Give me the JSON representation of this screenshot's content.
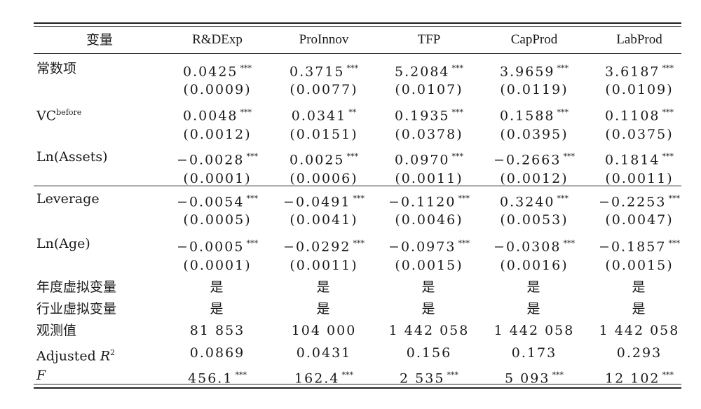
{
  "table": {
    "headers": [
      "变量",
      "R&DExp",
      "ProInnov",
      "TFP",
      "CapProd",
      "LabProd"
    ],
    "rows": [
      {
        "label": "常数项",
        "coef": [
          "0.0425",
          "0.3715",
          "5.2084",
          "3.9659",
          "3.6187"
        ],
        "stars": [
          "***",
          "***",
          "***",
          "***",
          "***"
        ],
        "se": [
          "(0.0009)",
          "(0.0077)",
          "(0.0107)",
          "(0.0119)",
          "(0.0109)"
        ]
      },
      {
        "label": "VC",
        "label_sup": "before",
        "coef": [
          "0.0048",
          "0.0341",
          "0.1935",
          "0.1588",
          "0.1108"
        ],
        "stars": [
          "***",
          "**",
          "***",
          "***",
          "***"
        ],
        "se": [
          "(0.0012)",
          "(0.0151)",
          "(0.0378)",
          "(0.0395)",
          "(0.0375)"
        ]
      },
      {
        "label": "Ln(Assets)",
        "coef": [
          "−0.0028",
          "0.0025",
          "0.0970",
          "−0.2663",
          "0.1814"
        ],
        "stars": [
          "***",
          "***",
          "***",
          "***",
          "***"
        ],
        "se": [
          "(0.0001)",
          "(0.0006)",
          "(0.0011)",
          "(0.0012)",
          "(0.0011)"
        ]
      },
      {
        "label": "Leverage",
        "coef": [
          "−0.0054",
          "−0.0491",
          "−0.1120",
          "0.3240",
          "−0.2253"
        ],
        "stars": [
          "***",
          "***",
          "***",
          "***",
          "***"
        ],
        "se": [
          "(0.0005)",
          "(0.0041)",
          "(0.0046)",
          "(0.0053)",
          "(0.0047)"
        ]
      },
      {
        "label": "Ln(Age)",
        "coef": [
          "−0.0005",
          "−0.0292",
          "−0.0973",
          "−0.0308",
          "−0.1857"
        ],
        "stars": [
          "***",
          "***",
          "***",
          "***",
          "***"
        ],
        "se": [
          "(0.0001)",
          "(0.0011)",
          "(0.0015)",
          "(0.0016)",
          "(0.0015)"
        ]
      }
    ],
    "footer": [
      {
        "label": "年度虚拟变量",
        "values": [
          "是",
          "是",
          "是",
          "是",
          "是"
        ]
      },
      {
        "label": "行业虚拟变量",
        "values": [
          "是",
          "是",
          "是",
          "是",
          "是"
        ]
      },
      {
        "label": "观测值",
        "values": [
          "81 853",
          "104 000",
          "1 442 058",
          "1 442 058",
          "1 442 058"
        ]
      },
      {
        "label": "Adjusted R",
        "label_sup": "2",
        "values": [
          "0.0869",
          "0.0431",
          "0.156",
          "0.173",
          "0.293"
        ]
      },
      {
        "label": "F",
        "values": [
          "456.1",
          "162.4",
          "2 535",
          "5 093",
          "12 102"
        ],
        "stars": [
          "***",
          "***",
          "***",
          "***",
          "***"
        ]
      }
    ]
  }
}
